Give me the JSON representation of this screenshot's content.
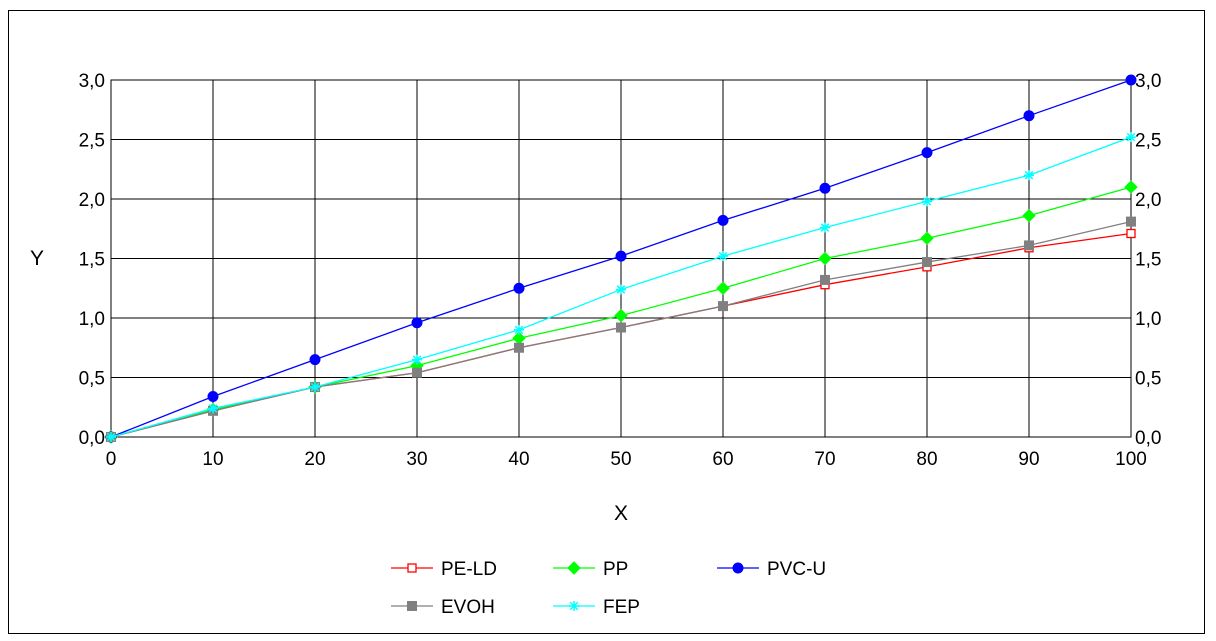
{
  "chart_data": {
    "type": "line",
    "title": "",
    "xlabel": "X",
    "ylabel": "Y",
    "xlim": [
      0,
      100
    ],
    "ylim": [
      0,
      3.0
    ],
    "x": [
      0,
      10,
      20,
      30,
      40,
      50,
      60,
      70,
      80,
      90,
      100
    ],
    "x_tick_labels": [
      "0",
      "10",
      "20",
      "30",
      "40",
      "50",
      "60",
      "70",
      "80",
      "90",
      "100"
    ],
    "y_ticks": [
      0,
      0.5,
      1.0,
      1.5,
      2.0,
      2.5,
      3.0
    ],
    "y_tick_labels": [
      "0,0",
      "0,5",
      "1,0",
      "1,5",
      "2,0",
      "2,5",
      "3,0"
    ],
    "y_axis_mirrored_right": true,
    "grid": true,
    "legend_position": "bottom",
    "series": [
      {
        "name": "PE-LD",
        "color": "#ff0000",
        "marker": "open-square",
        "values": [
          0,
          0.22,
          0.42,
          0.54,
          0.75,
          0.92,
          1.1,
          1.28,
          1.43,
          1.59,
          1.71
        ]
      },
      {
        "name": "PP",
        "color": "#00ff00",
        "marker": "diamond",
        "values": [
          0,
          0.23,
          0.42,
          0.6,
          0.83,
          1.02,
          1.25,
          1.5,
          1.67,
          1.86,
          2.1
        ]
      },
      {
        "name": "PVC-U",
        "color": "#0000ff",
        "marker": "circle",
        "values": [
          0,
          0.34,
          0.65,
          0.96,
          1.25,
          1.52,
          1.82,
          2.09,
          2.39,
          2.7,
          3.0
        ]
      },
      {
        "name": "EVOH",
        "color": "#808080",
        "marker": "square",
        "values": [
          0,
          0.22,
          0.42,
          0.54,
          0.75,
          0.92,
          1.1,
          1.32,
          1.47,
          1.61,
          1.81
        ]
      },
      {
        "name": "FEP",
        "color": "#00ffff",
        "marker": "star",
        "values": [
          0,
          0.24,
          0.42,
          0.65,
          0.9,
          1.24,
          1.52,
          1.76,
          1.98,
          2.2,
          2.52
        ]
      }
    ]
  }
}
